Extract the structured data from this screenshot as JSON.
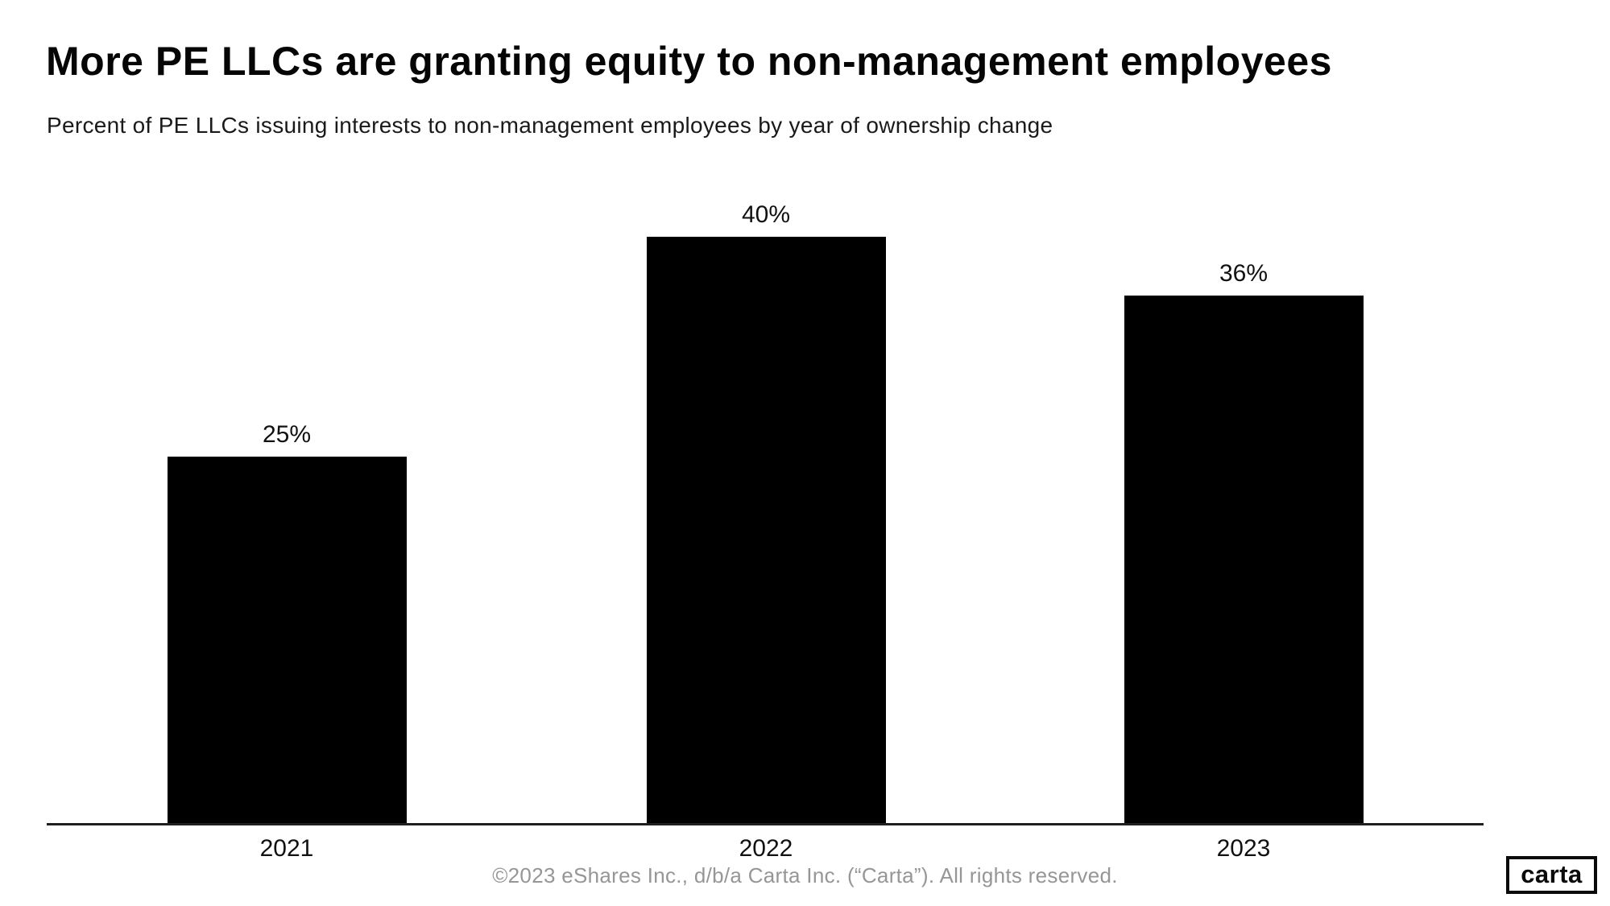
{
  "header": {
    "title": "More PE LLCs are granting equity to non-management employees",
    "subtitle": "Percent of PE LLCs issuing interests to non-management employees by year of ownership change"
  },
  "chart_data": {
    "type": "bar",
    "title": "More PE LLCs are granting equity to non-management employees",
    "subtitle": "Percent of PE LLCs issuing interests to non-management employees by year of ownership change",
    "categories": [
      "2021",
      "2022",
      "2023"
    ],
    "values": [
      25,
      40,
      36
    ],
    "value_labels": [
      "25%",
      "40%",
      "36%"
    ],
    "xlabel": "",
    "ylabel": "",
    "ylim": [
      0,
      45
    ],
    "grid": false,
    "legend": false,
    "y_axis_shown": false,
    "bar_color": "#000000"
  },
  "footer": {
    "copyright": "©2023 eShares Inc., d/b/a Carta Inc. (“Carta”). All rights reserved.",
    "logo_text": "carta"
  },
  "colors": {
    "background": "#ffffff",
    "bar": "#000000",
    "title_text": "#050505",
    "subtitle_text": "#1a1a1a",
    "axis_line": "#1f1f1f",
    "footer_text": "#969696",
    "logo_border": "#0a0a0a"
  }
}
